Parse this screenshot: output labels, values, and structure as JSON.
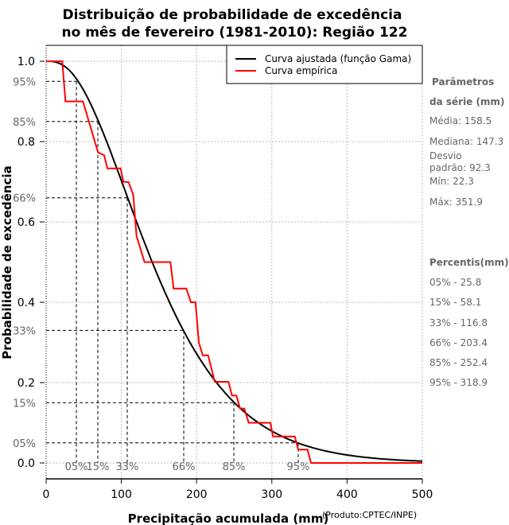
{
  "chart_data": {
    "type": "line",
    "title": [
      "Distribuição de probabilidade de excedência",
      "no mês de fevereiro (1981-2010): Região 122"
    ],
    "xlabel": "Precipitação acumulada (mm)",
    "xlabel_note": "(Produto:CPTEC/INPE)",
    "ylabel": "Probabilidade de excedência",
    "xlim": [
      0,
      500
    ],
    "ylim": [
      0,
      1
    ],
    "grid": true,
    "legend_position": "top-right",
    "x_ticks": [
      0,
      100,
      200,
      300,
      400,
      500
    ],
    "x_tick_labels": [
      "0",
      "100",
      "200",
      "300",
      "400",
      "500"
    ],
    "y_ticks": [
      0,
      0.2,
      0.4,
      0.6,
      0.8,
      1.0
    ],
    "y_tick_labels": [
      "0.0",
      "0.2",
      "0.4",
      "0.6",
      "0.8",
      "1.0"
    ],
    "percent_marks": [
      {
        "label": "95%",
        "prob": 0.95,
        "x": 40.2,
        "xlabel": "05%"
      },
      {
        "label": "85%",
        "prob": 0.85,
        "x": 68.7,
        "xlabel": "15%"
      },
      {
        "label": "66%",
        "prob": 0.66,
        "x": 107.8,
        "xlabel": "33%"
      },
      {
        "label": "33%",
        "prob": 0.33,
        "x": 182.9,
        "xlabel": "66%"
      },
      {
        "label": "15%",
        "prob": 0.15,
        "x": 249.5,
        "xlabel": "85%"
      },
      {
        "label": "05%",
        "prob": 0.05,
        "x": 335.1,
        "xlabel": "95%"
      }
    ],
    "series": [
      {
        "name": "Curva ajustada (função Gama)",
        "color": "#000000",
        "distribution": "gamma",
        "mean": 158.5,
        "sd": 92.3
      },
      {
        "name": "Curva empírica",
        "color": "#ff0000",
        "points": [
          [
            0,
            1.0
          ],
          [
            21.5,
            1.0
          ],
          [
            25.7,
            0.9
          ],
          [
            48.9,
            0.9
          ],
          [
            69.0,
            0.773
          ],
          [
            77.2,
            0.766
          ],
          [
            81.4,
            0.733
          ],
          [
            99.0,
            0.733
          ],
          [
            102.5,
            0.7
          ],
          [
            109.6,
            0.699
          ],
          [
            115.9,
            0.667
          ],
          [
            118.4,
            0.605
          ],
          [
            120.2,
            0.565
          ],
          [
            130.8,
            0.5
          ],
          [
            165.2,
            0.5
          ],
          [
            169.5,
            0.434
          ],
          [
            186.4,
            0.434
          ],
          [
            192.4,
            0.4
          ],
          [
            198.4,
            0.4
          ],
          [
            199.5,
            0.38
          ],
          [
            203,
            0.3
          ],
          [
            208.2,
            0.268
          ],
          [
            215.3,
            0.268
          ],
          [
            224.1,
            0.202
          ],
          [
            242.4,
            0.202
          ],
          [
            247,
            0.168
          ],
          [
            253,
            0.168
          ],
          [
            257.6,
            0.136
          ],
          [
            263.5,
            0.135
          ],
          [
            269.2,
            0.1
          ],
          [
            298.1,
            0.1
          ],
          [
            301.6,
            0.066
          ],
          [
            330.5,
            0.066
          ],
          [
            335.1,
            0.033
          ],
          [
            347.5,
            0.033
          ],
          [
            352,
            0
          ],
          [
            500,
            0
          ]
        ]
      }
    ]
  },
  "side_panel": {
    "params_title_1": "Parâmetros",
    "params_title_2": "da série (mm)",
    "media": "Média: 158.5",
    "mediana": "Mediana: 147.3",
    "desvio_1": "Desvio",
    "desvio_2": "padrão: 92.3",
    "min": "Mín: 22.3",
    "max": "Máx: 351.9",
    "percentis_title": "Percentis(mm)",
    "percentis": [
      "05% - 25.8",
      "15% - 58.1",
      "33% - 116.8",
      "66% - 203.4",
      "85% - 252.4",
      "95% - 318.9"
    ]
  }
}
